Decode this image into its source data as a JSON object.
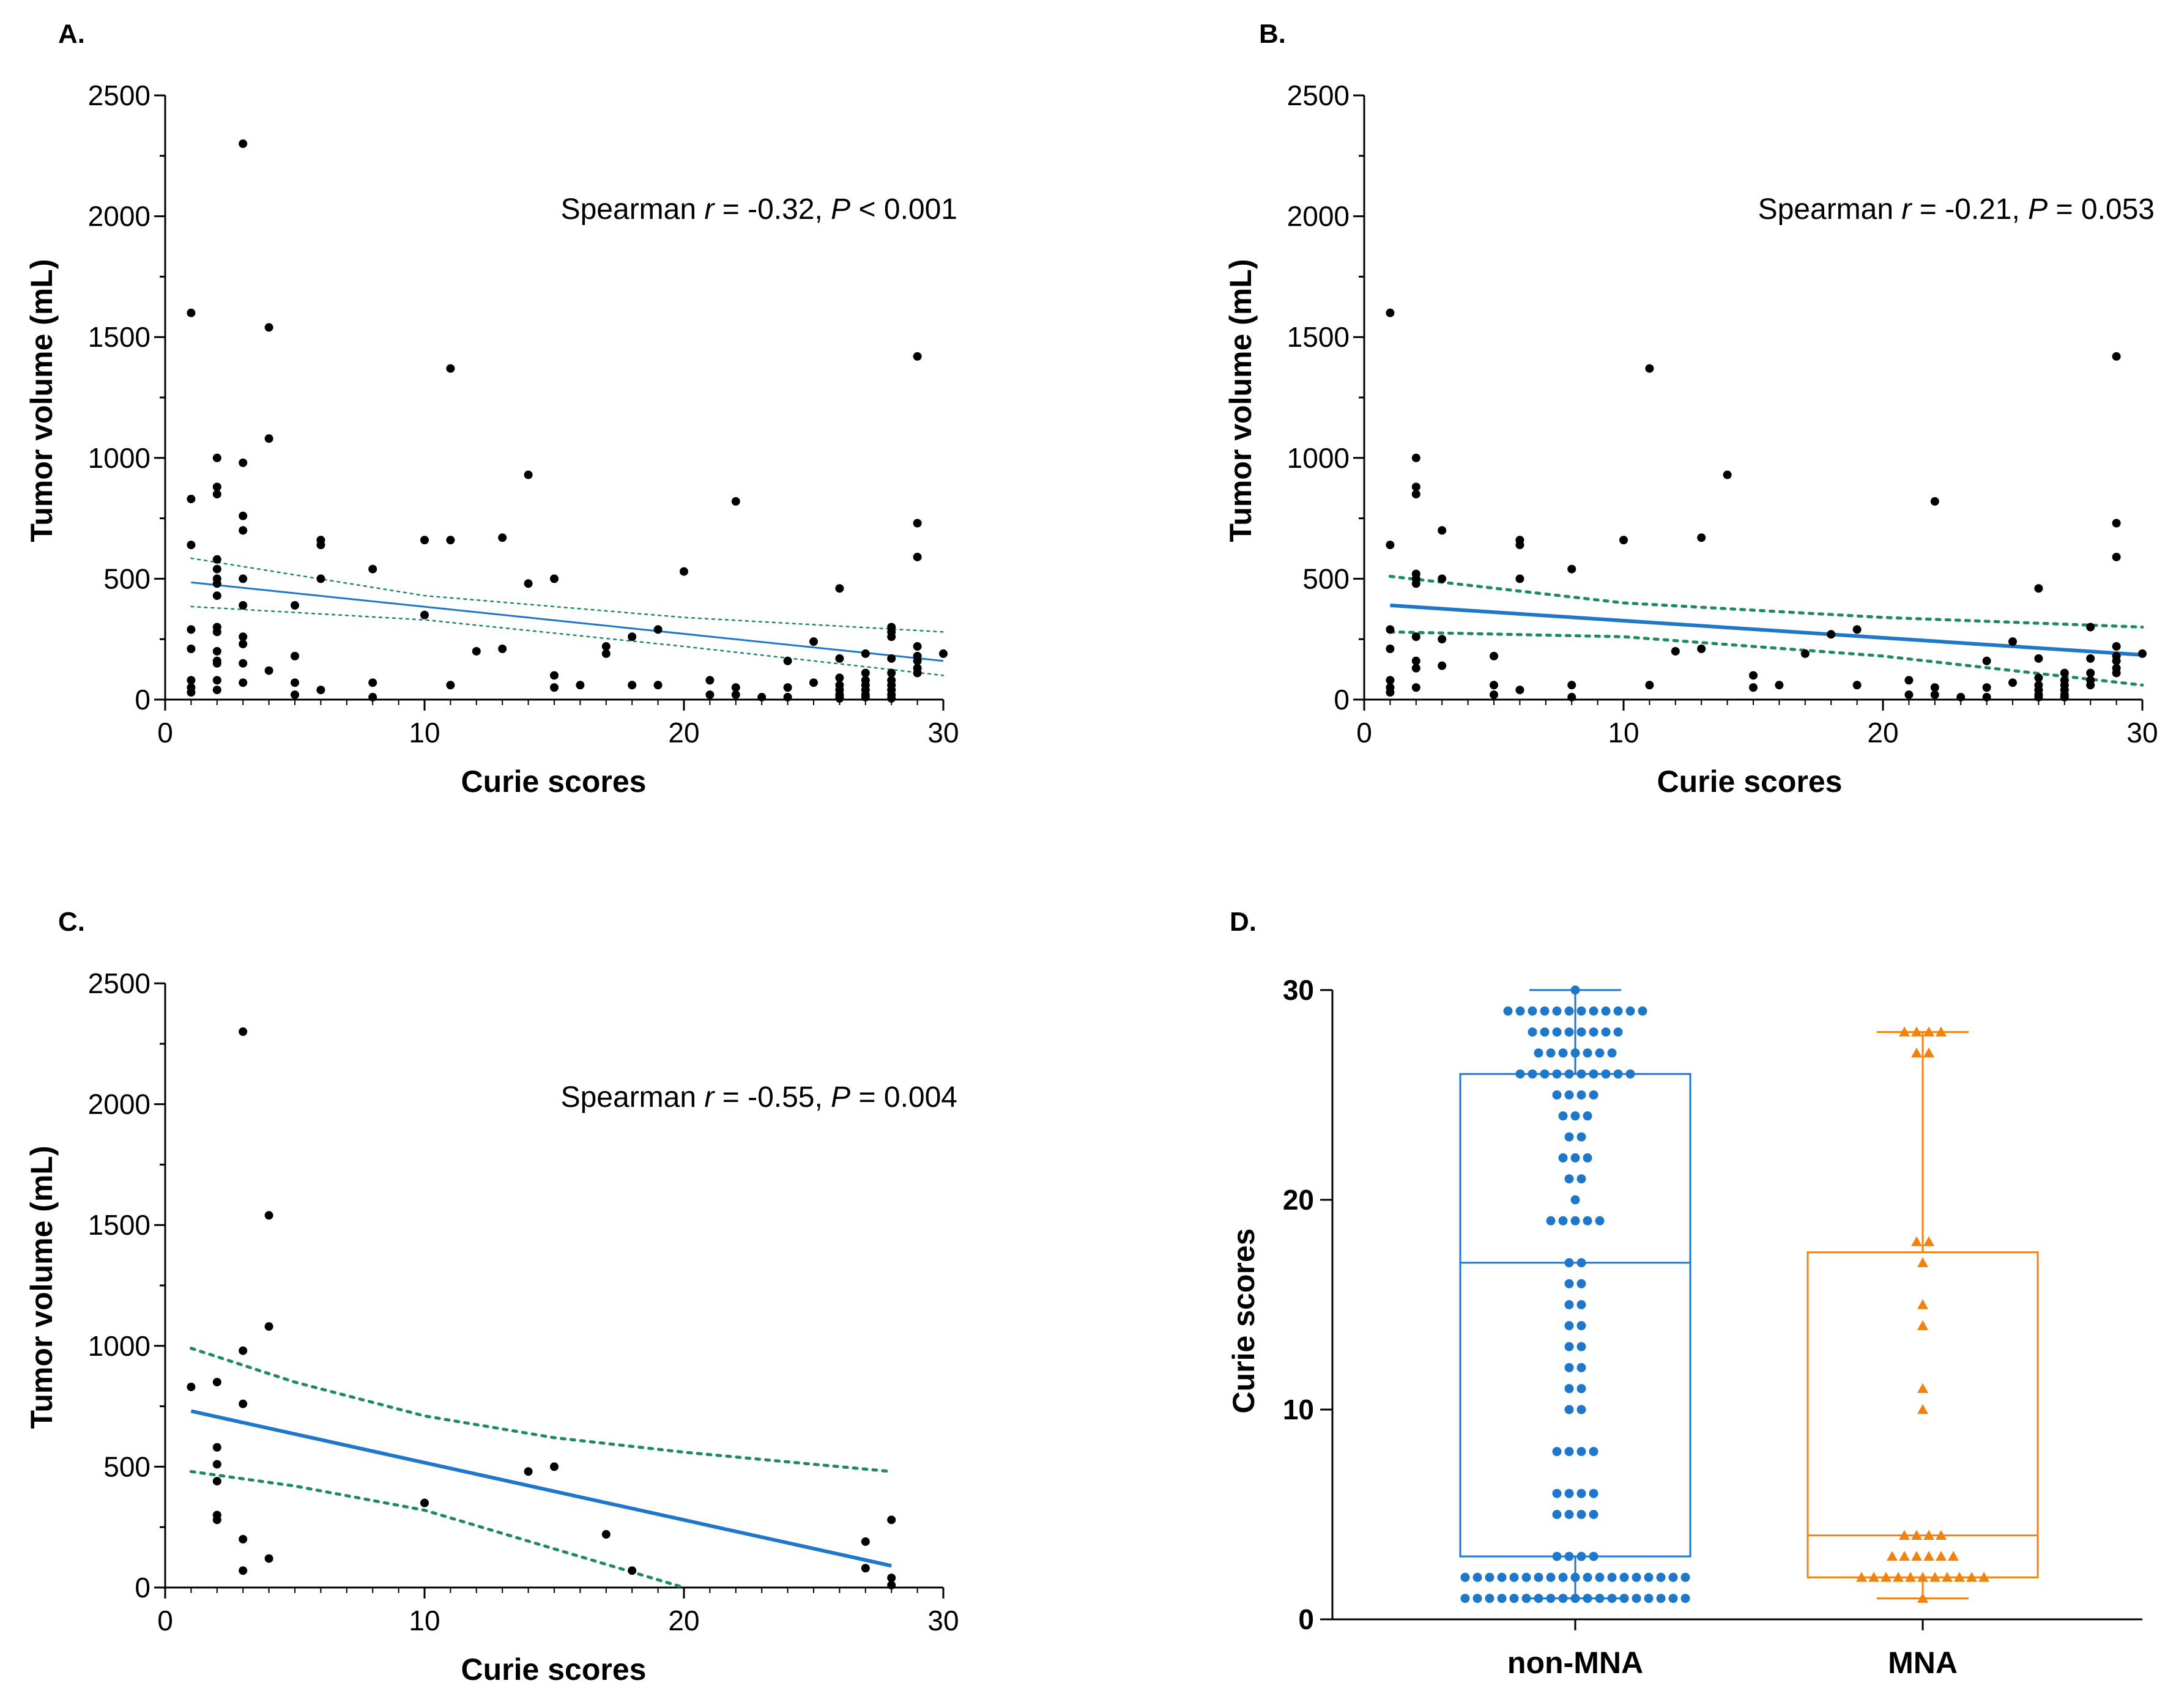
{
  "colors": {
    "axis": "#000000",
    "regression_line": "#1f77c9",
    "ci_line": "#1f8a5e",
    "points": "#000000",
    "non_mna": "#1f77c9",
    "mna": "#f0820f"
  },
  "chart_data": [
    {
      "panel": "A.",
      "type": "scatter",
      "xlabel": "Curie scores",
      "ylabel": "Tumor volume (mL)",
      "xlim": [
        0,
        30
      ],
      "ylim": [
        0,
        2500
      ],
      "xticks": [
        "0",
        "10",
        "20",
        "30"
      ],
      "yticks": [
        "0",
        "500",
        "1000",
        "1500",
        "2000",
        "2500"
      ],
      "annotation": {
        "pre": "Spearman ",
        "r_sym": "r",
        "r_val": " = -0.32, ",
        "p_sym": "P",
        "p_val": " < 0.001"
      },
      "fit": {
        "x": [
          1,
          30
        ],
        "y": [
          485,
          160
        ]
      },
      "ci_upper": {
        "x": [
          1,
          10,
          20,
          30
        ],
        "y": [
          585,
          430,
          340,
          280
        ]
      },
      "ci_lower": {
        "x": [
          1,
          10,
          20,
          30
        ],
        "y": [
          385,
          330,
          220,
          100
        ]
      },
      "points": [
        [
          1,
          1600
        ],
        [
          1,
          830
        ],
        [
          1,
          640
        ],
        [
          1,
          290
        ],
        [
          1,
          210
        ],
        [
          1,
          80
        ],
        [
          1,
          50
        ],
        [
          1,
          30
        ],
        [
          2,
          1000
        ],
        [
          2,
          880
        ],
        [
          2,
          850
        ],
        [
          2,
          580
        ],
        [
          2,
          540
        ],
        [
          2,
          500
        ],
        [
          2,
          480
        ],
        [
          2,
          430
        ],
        [
          2,
          300
        ],
        [
          2,
          280
        ],
        [
          2,
          200
        ],
        [
          2,
          160
        ],
        [
          2,
          150
        ],
        [
          2,
          80
        ],
        [
          2,
          40
        ],
        [
          3,
          2300
        ],
        [
          3,
          980
        ],
        [
          3,
          760
        ],
        [
          3,
          700
        ],
        [
          3,
          500
        ],
        [
          3,
          390
        ],
        [
          3,
          260
        ],
        [
          3,
          230
        ],
        [
          3,
          150
        ],
        [
          3,
          70
        ],
        [
          4,
          1540
        ],
        [
          4,
          1080
        ],
        [
          4,
          120
        ],
        [
          5,
          390
        ],
        [
          5,
          180
        ],
        [
          5,
          70
        ],
        [
          5,
          20
        ],
        [
          6,
          660
        ],
        [
          6,
          640
        ],
        [
          6,
          500
        ],
        [
          6,
          40
        ],
        [
          8,
          540
        ],
        [
          8,
          70
        ],
        [
          8,
          10
        ],
        [
          10,
          660
        ],
        [
          10,
          350
        ],
        [
          11,
          1370
        ],
        [
          11,
          660
        ],
        [
          11,
          60
        ],
        [
          12,
          200
        ],
        [
          13,
          670
        ],
        [
          13,
          210
        ],
        [
          14,
          930
        ],
        [
          14,
          480
        ],
        [
          15,
          500
        ],
        [
          15,
          100
        ],
        [
          15,
          50
        ],
        [
          16,
          60
        ],
        [
          17,
          220
        ],
        [
          17,
          190
        ],
        [
          18,
          260
        ],
        [
          18,
          60
        ],
        [
          19,
          290
        ],
        [
          19,
          60
        ],
        [
          20,
          530
        ],
        [
          21,
          80
        ],
        [
          21,
          20
        ],
        [
          22,
          820
        ],
        [
          22,
          50
        ],
        [
          22,
          20
        ],
        [
          23,
          10
        ],
        [
          24,
          160
        ],
        [
          24,
          50
        ],
        [
          24,
          10
        ],
        [
          25,
          240
        ],
        [
          25,
          70
        ],
        [
          26,
          460
        ],
        [
          26,
          170
        ],
        [
          26,
          90
        ],
        [
          26,
          60
        ],
        [
          26,
          40
        ],
        [
          26,
          20
        ],
        [
          26,
          10
        ],
        [
          26,
          5
        ],
        [
          27,
          190
        ],
        [
          27,
          110
        ],
        [
          27,
          80
        ],
        [
          27,
          60
        ],
        [
          27,
          40
        ],
        [
          27,
          20
        ],
        [
          27,
          10
        ],
        [
          28,
          300
        ],
        [
          28,
          280
        ],
        [
          28,
          260
        ],
        [
          28,
          170
        ],
        [
          28,
          110
        ],
        [
          28,
          80
        ],
        [
          28,
          60
        ],
        [
          28,
          40
        ],
        [
          28,
          20
        ],
        [
          28,
          5
        ],
        [
          29,
          1420
        ],
        [
          29,
          730
        ],
        [
          29,
          590
        ],
        [
          29,
          220
        ],
        [
          29,
          180
        ],
        [
          29,
          160
        ],
        [
          29,
          130
        ],
        [
          29,
          110
        ],
        [
          30,
          190
        ]
      ]
    },
    {
      "panel": "B.",
      "type": "scatter",
      "xlabel": "Curie scores",
      "ylabel": "Tumor volume (mL)",
      "xlim": [
        0,
        30
      ],
      "ylim": [
        0,
        2500
      ],
      "xticks": [
        "0",
        "10",
        "20",
        "30"
      ],
      "yticks": [
        "0",
        "500",
        "1000",
        "1500",
        "2000",
        "2500"
      ],
      "annotation": {
        "pre": "Spearman ",
        "r_sym": "r",
        "r_val": " = -0.21, ",
        "p_sym": "P",
        "p_val": " = 0.053"
      },
      "fit": {
        "x": [
          1,
          30
        ],
        "y": [
          390,
          185
        ]
      },
      "ci_upper": {
        "x": [
          1,
          10,
          20,
          30
        ],
        "y": [
          510,
          400,
          340,
          300
        ]
      },
      "ci_lower": {
        "x": [
          1,
          10,
          20,
          30
        ],
        "y": [
          280,
          260,
          180,
          60
        ]
      },
      "points": [
        [
          1,
          1600
        ],
        [
          1,
          640
        ],
        [
          1,
          290
        ],
        [
          1,
          210
        ],
        [
          1,
          80
        ],
        [
          1,
          50
        ],
        [
          1,
          30
        ],
        [
          2,
          1000
        ],
        [
          2,
          880
        ],
        [
          2,
          850
        ],
        [
          2,
          520
        ],
        [
          2,
          500
        ],
        [
          2,
          480
        ],
        [
          2,
          260
        ],
        [
          2,
          160
        ],
        [
          2,
          130
        ],
        [
          2,
          50
        ],
        [
          3,
          700
        ],
        [
          3,
          500
        ],
        [
          3,
          250
        ],
        [
          3,
          140
        ],
        [
          5,
          180
        ],
        [
          5,
          60
        ],
        [
          5,
          20
        ],
        [
          6,
          660
        ],
        [
          6,
          640
        ],
        [
          6,
          500
        ],
        [
          6,
          40
        ],
        [
          8,
          540
        ],
        [
          8,
          60
        ],
        [
          8,
          10
        ],
        [
          10,
          660
        ],
        [
          11,
          1370
        ],
        [
          11,
          60
        ],
        [
          12,
          200
        ],
        [
          13,
          670
        ],
        [
          13,
          210
        ],
        [
          14,
          930
        ],
        [
          15,
          100
        ],
        [
          15,
          50
        ],
        [
          16,
          60
        ],
        [
          17,
          190
        ],
        [
          18,
          270
        ],
        [
          19,
          290
        ],
        [
          19,
          60
        ],
        [
          21,
          80
        ],
        [
          21,
          20
        ],
        [
          22,
          820
        ],
        [
          22,
          50
        ],
        [
          22,
          20
        ],
        [
          23,
          10
        ],
        [
          24,
          160
        ],
        [
          24,
          50
        ],
        [
          24,
          10
        ],
        [
          25,
          240
        ],
        [
          25,
          70
        ],
        [
          26,
          460
        ],
        [
          26,
          170
        ],
        [
          26,
          90
        ],
        [
          26,
          60
        ],
        [
          26,
          40
        ],
        [
          26,
          20
        ],
        [
          26,
          10
        ],
        [
          27,
          110
        ],
        [
          27,
          80
        ],
        [
          27,
          60
        ],
        [
          27,
          40
        ],
        [
          27,
          20
        ],
        [
          27,
          10
        ],
        [
          28,
          300
        ],
        [
          28,
          170
        ],
        [
          28,
          110
        ],
        [
          28,
          80
        ],
        [
          28,
          60
        ],
        [
          29,
          1420
        ],
        [
          29,
          730
        ],
        [
          29,
          590
        ],
        [
          29,
          220
        ],
        [
          29,
          180
        ],
        [
          29,
          160
        ],
        [
          29,
          130
        ],
        [
          29,
          110
        ],
        [
          30,
          190
        ]
      ]
    },
    {
      "panel": "C.",
      "type": "scatter",
      "xlabel": "Curie scores",
      "ylabel": "Tumor volume (mL)",
      "xlim": [
        0,
        30
      ],
      "ylim": [
        0,
        2500
      ],
      "xticks": [
        "0",
        "10",
        "20",
        "30"
      ],
      "yticks": [
        "0",
        "500",
        "1000",
        "1500",
        "2000",
        "2500"
      ],
      "annotation": {
        "pre": "Spearman ",
        "r_sym": "r",
        "r_val": " = -0.55, ",
        "p_sym": "P",
        "p_val": " = 0.004"
      },
      "fit": {
        "x": [
          1,
          28
        ],
        "y": [
          730,
          90
        ]
      },
      "ci_upper": {
        "x": [
          1,
          5,
          10,
          15,
          20,
          28
        ],
        "y": [
          990,
          850,
          710,
          620,
          560,
          480
        ]
      },
      "ci_lower": {
        "x": [
          1,
          5,
          10,
          15,
          20
        ],
        "y": [
          480,
          420,
          320,
          160,
          0
        ]
      },
      "points": [
        [
          1,
          830
        ],
        [
          2,
          850
        ],
        [
          2,
          580
        ],
        [
          2,
          510
        ],
        [
          2,
          440
        ],
        [
          2,
          300
        ],
        [
          2,
          280
        ],
        [
          3,
          2300
        ],
        [
          3,
          980
        ],
        [
          3,
          760
        ],
        [
          3,
          200
        ],
        [
          3,
          70
        ],
        [
          4,
          1540
        ],
        [
          4,
          1080
        ],
        [
          4,
          120
        ],
        [
          10,
          350
        ],
        [
          14,
          480
        ],
        [
          15,
          500
        ],
        [
          17,
          220
        ],
        [
          18,
          70
        ],
        [
          27,
          190
        ],
        [
          27,
          80
        ],
        [
          28,
          280
        ],
        [
          28,
          40
        ],
        [
          28,
          10
        ]
      ]
    },
    {
      "panel": "D.",
      "type": "box",
      "xlabel": "",
      "ylabel": "Curie scores",
      "ylim": [
        0,
        30
      ],
      "yticks": [
        "0",
        "10",
        "20",
        "30"
      ],
      "categories": [
        "non-MNA",
        "MNA"
      ],
      "series": [
        {
          "name": "non-MNA",
          "marker": "circle",
          "box": {
            "min": 1,
            "q1": 3,
            "median": 17,
            "q3": 26,
            "max": 30
          },
          "values": [
            1,
            1,
            1,
            1,
            1,
            1,
            1,
            1,
            1,
            1,
            1,
            1,
            1,
            1,
            1,
            1,
            1,
            1,
            1,
            2,
            2,
            2,
            2,
            2,
            2,
            2,
            2,
            2,
            2,
            2,
            2,
            2,
            2,
            2,
            2,
            2,
            2,
            2,
            3,
            3,
            3,
            3,
            5,
            5,
            5,
            5,
            6,
            6,
            6,
            6,
            8,
            8,
            8,
            8,
            10,
            10,
            11,
            11,
            12,
            12,
            13,
            13,
            14,
            14,
            15,
            15,
            16,
            16,
            17,
            17,
            19,
            19,
            19,
            19,
            19,
            20,
            21,
            21,
            22,
            22,
            22,
            23,
            23,
            24,
            24,
            24,
            25,
            25,
            25,
            25,
            26,
            26,
            26,
            26,
            26,
            26,
            26,
            26,
            26,
            26,
            27,
            27,
            27,
            27,
            27,
            27,
            27,
            28,
            28,
            28,
            28,
            28,
            28,
            28,
            28,
            29,
            29,
            29,
            29,
            29,
            29,
            29,
            29,
            29,
            29,
            29,
            29,
            30
          ]
        },
        {
          "name": "MNA",
          "marker": "triangle",
          "box": {
            "min": 1,
            "q1": 2,
            "median": 4,
            "q3": 17.5,
            "max": 28
          },
          "values": [
            1,
            2,
            2,
            2,
            2,
            2,
            2,
            2,
            2,
            2,
            2,
            2,
            3,
            3,
            3,
            3,
            3,
            3,
            4,
            4,
            4,
            4,
            10,
            11,
            14,
            15,
            17,
            18,
            18,
            27,
            27,
            28,
            28,
            28,
            28
          ]
        }
      ]
    }
  ]
}
